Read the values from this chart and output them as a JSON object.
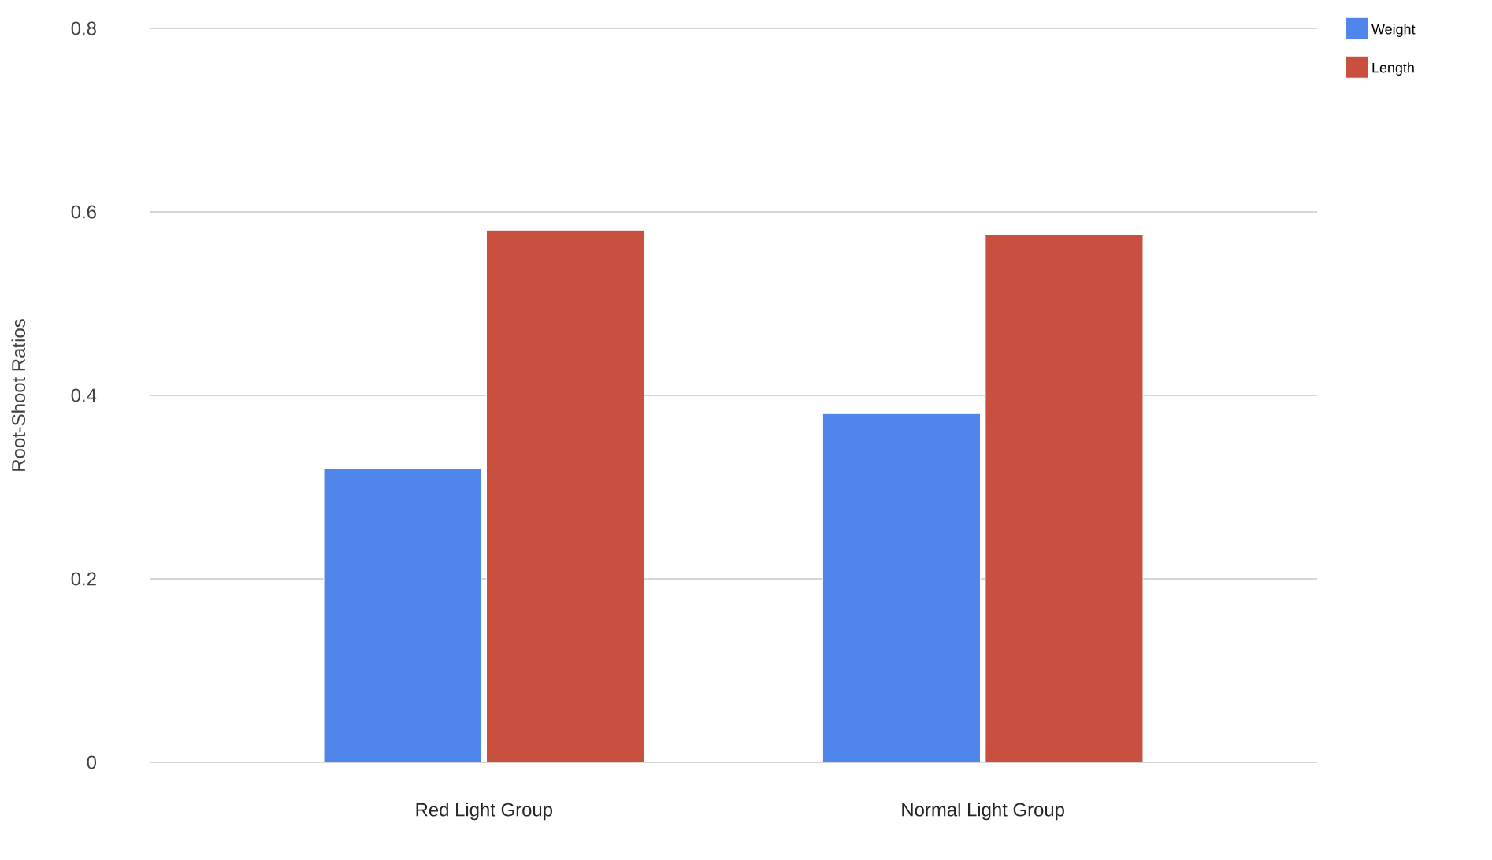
{
  "chart_data": {
    "type": "bar",
    "ylabel": "Root-Shoot Ratios",
    "categories": [
      "Red Light Group",
      "Normal Light Group"
    ],
    "series": [
      {
        "name": "Weight",
        "color": "#5085ec",
        "values": [
          0.32,
          0.38
        ]
      },
      {
        "name": "Length",
        "color": "#c94f3f",
        "values": [
          0.58,
          0.575
        ]
      }
    ],
    "ylim": [
      0,
      0.8
    ],
    "yticks": [
      0,
      0.2,
      0.4,
      0.6,
      0.8
    ],
    "grid": "y",
    "legend": "top right"
  }
}
